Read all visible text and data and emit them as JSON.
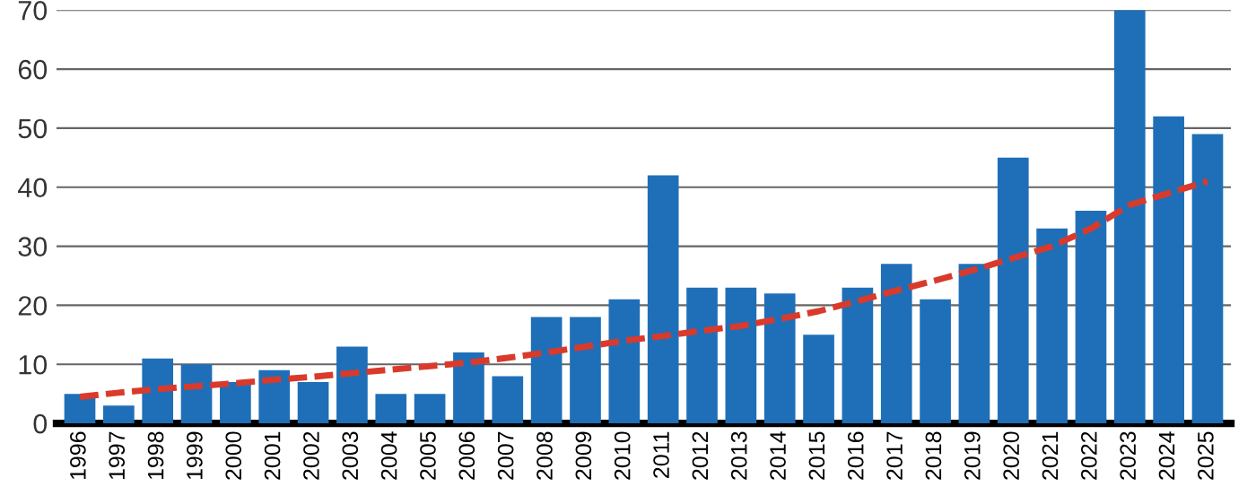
{
  "chart_data": {
    "type": "bar",
    "categories": [
      "1996",
      "1997",
      "1998",
      "1999",
      "2000",
      "2001",
      "2002",
      "2003",
      "2004",
      "2005",
      "2006",
      "2007",
      "2008",
      "2009",
      "2010",
      "2011",
      "2012",
      "2013",
      "2014",
      "2015",
      "2016",
      "2017",
      "2018",
      "2019",
      "2020",
      "2021",
      "2022",
      "2023",
      "2024",
      "2025"
    ],
    "series": [
      {
        "color": "#1f6fb8",
        "values": [
          5,
          3,
          11,
          10,
          7,
          9,
          7,
          13,
          5,
          5,
          12,
          8,
          18,
          18,
          21,
          42,
          23,
          23,
          22,
          15,
          23,
          27,
          21,
          27,
          45,
          33,
          36,
          70,
          52,
          49
        ]
      },
      {
        "type": "line",
        "color": "#d93a2b",
        "line_style": "dashed",
        "values": [
          4.5,
          5.2,
          5.8,
          6.3,
          6.8,
          7.4,
          7.9,
          8.5,
          9.1,
          9.7,
          10.3,
          11.1,
          12,
          13,
          14,
          14.8,
          15.7,
          16.5,
          17.7,
          19,
          20.7,
          22.5,
          24.2,
          26,
          28,
          30,
          33,
          37,
          39,
          41
        ]
      }
    ],
    "ylim": [
      0,
      70
    ],
    "yticks": [
      0,
      10,
      20,
      30,
      40,
      50,
      60,
      70
    ],
    "grid": "y",
    "legend": false
  }
}
